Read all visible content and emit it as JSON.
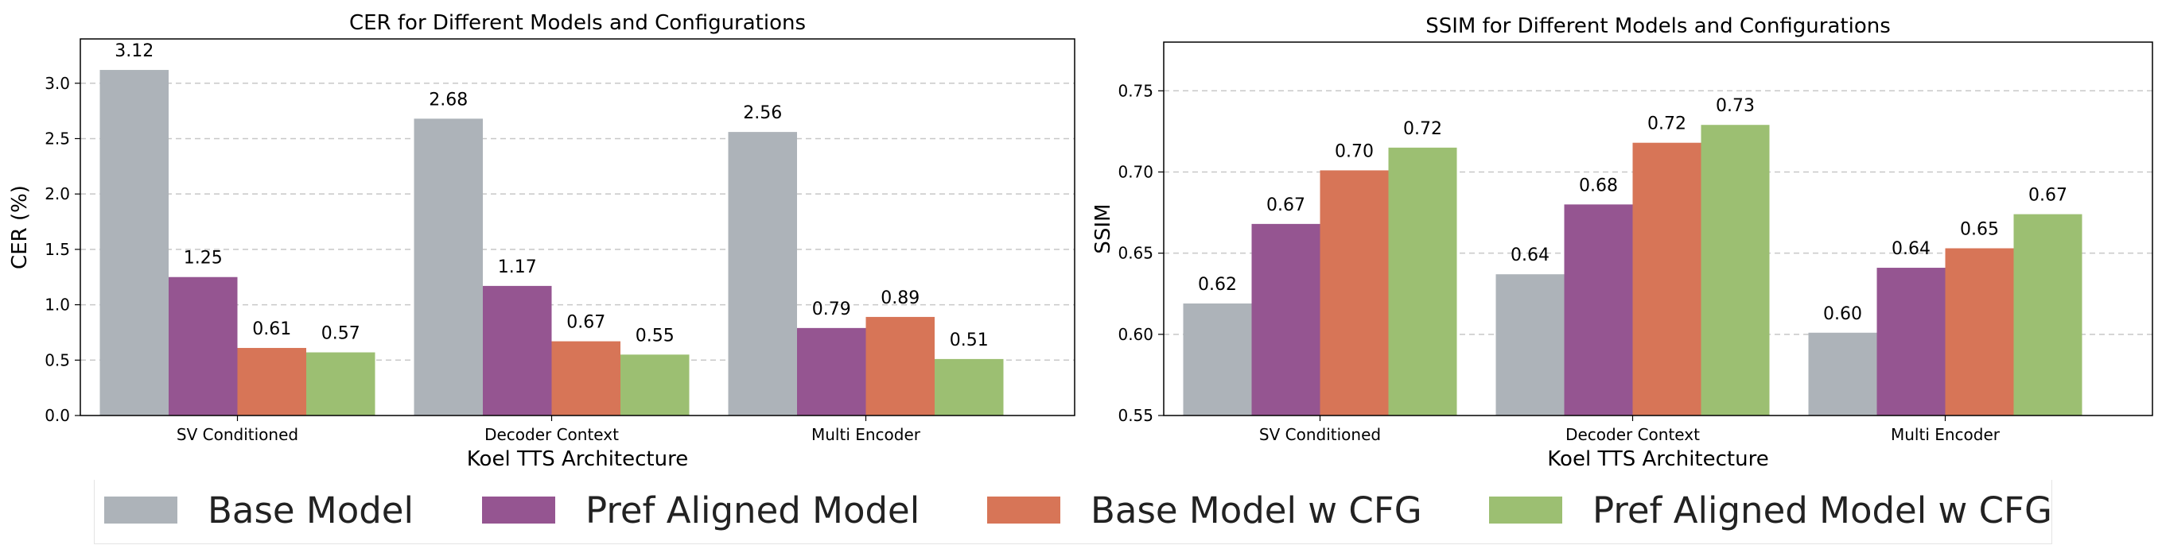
{
  "chart_data": [
    {
      "type": "bar",
      "title": "CER for Different Models and Configurations",
      "xlabel": "Koel TTS Architecture",
      "ylabel": "CER (%)",
      "categories": [
        "SV Conditioned",
        "Decoder Context",
        "Multi Encoder"
      ],
      "ylim": [
        0,
        3.4
      ],
      "yticks": [
        0.0,
        0.5,
        1.0,
        1.5,
        2.0,
        2.5,
        3.0
      ],
      "ytick_labels": [
        "0.0",
        "0.5",
        "1.0",
        "1.5",
        "2.0",
        "2.5",
        "3.0"
      ],
      "grid": "y-dashed",
      "series": [
        {
          "name": "Base Model",
          "values": [
            3.12,
            2.68,
            2.56
          ],
          "labels": [
            "3.12",
            "2.68",
            "2.56"
          ],
          "color": "#adb3b9"
        },
        {
          "name": "Pref Aligned Model",
          "values": [
            1.25,
            1.17,
            0.79
          ],
          "labels": [
            "1.25",
            "1.17",
            "0.79"
          ],
          "color": "#955591"
        },
        {
          "name": "Base Model w CFG",
          "values": [
            0.61,
            0.67,
            0.89
          ],
          "labels": [
            "0.61",
            "0.67",
            "0.89"
          ],
          "color": "#d77557"
        },
        {
          "name": "Pref Aligned Model w CFG",
          "values": [
            0.57,
            0.55,
            0.51
          ],
          "labels": [
            "0.57",
            "0.55",
            "0.51"
          ],
          "color": "#9cbf72"
        }
      ]
    },
    {
      "type": "bar",
      "title": "SSIM for Different Models and Configurations",
      "xlabel": "Koel TTS Architecture",
      "ylabel": "SSIM",
      "categories": [
        "SV Conditioned",
        "Decoder Context",
        "Multi Encoder"
      ],
      "ylim": [
        0.55,
        0.78
      ],
      "yticks": [
        0.55,
        0.6,
        0.65,
        0.7,
        0.75
      ],
      "ytick_labels": [
        "0.55",
        "0.60",
        "0.65",
        "0.70",
        "0.75"
      ],
      "grid": "y-dashed",
      "series": [
        {
          "name": "Base Model",
          "values": [
            0.619,
            0.637,
            0.601
          ],
          "labels": [
            "0.62",
            "0.64",
            "0.60"
          ],
          "color": "#adb3b9"
        },
        {
          "name": "Pref Aligned Model",
          "values": [
            0.668,
            0.68,
            0.641
          ],
          "labels": [
            "0.67",
            "0.68",
            "0.64"
          ],
          "color": "#955591"
        },
        {
          "name": "Base Model w CFG",
          "values": [
            0.701,
            0.718,
            0.653
          ],
          "labels": [
            "0.70",
            "0.72",
            "0.65"
          ],
          "color": "#d77557"
        },
        {
          "name": "Pref Aligned Model w CFG",
          "values": [
            0.715,
            0.729,
            0.674
          ],
          "labels": [
            "0.72",
            "0.73",
            "0.67"
          ],
          "color": "#9cbf72"
        }
      ]
    }
  ],
  "legend": {
    "placement": "bottom",
    "items": [
      {
        "label": "Base Model",
        "color": "#adb3b9"
      },
      {
        "label": "Pref Aligned Model",
        "color": "#955591"
      },
      {
        "label": "Base Model w CFG",
        "color": "#d77557"
      },
      {
        "label": "Pref Aligned Model w CFG",
        "color": "#9cbf72"
      }
    ]
  }
}
